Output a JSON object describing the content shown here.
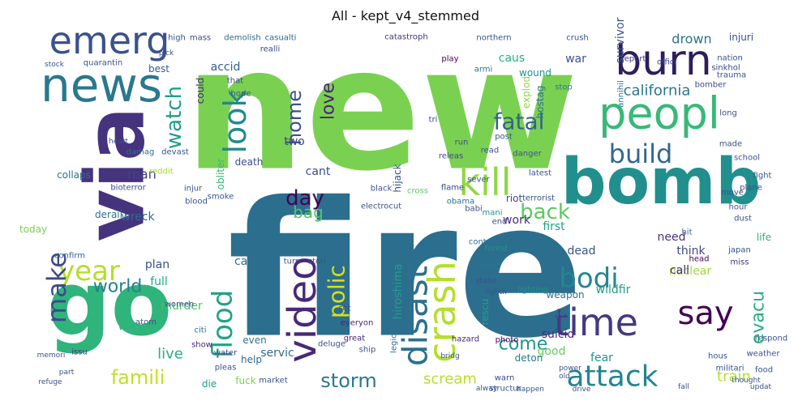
{
  "title": "All - kept_v4_stemmed",
  "chart_data": {
    "type": "wordcloud",
    "title": "All - kept_v4_stemmed",
    "words": [
      {
        "text": "new",
        "weight": 100,
        "color": "#7ad151"
      },
      {
        "text": "fire",
        "weight": 98,
        "color": "#2c6e8e"
      },
      {
        "text": "via",
        "weight": 48,
        "color": "#46337e"
      },
      {
        "text": "go",
        "weight": 46,
        "color": "#2fb47c"
      },
      {
        "text": "bomb",
        "weight": 40,
        "color": "#218f8d"
      },
      {
        "text": "news",
        "weight": 34,
        "color": "#2a788e"
      },
      {
        "text": "peopl",
        "weight": 32,
        "color": "#38b977"
      },
      {
        "text": "burn",
        "weight": 30,
        "color": "#2d1e5b"
      },
      {
        "text": "emerg",
        "weight": 30,
        "color": "#3b528b"
      },
      {
        "text": "time",
        "weight": 28,
        "color": "#443983"
      },
      {
        "text": "video",
        "weight": 28,
        "color": "#482878"
      },
      {
        "text": "crash",
        "weight": 28,
        "color": "#b5de2b"
      },
      {
        "text": "kill",
        "weight": 28,
        "color": "#8fd744"
      },
      {
        "text": "disast",
        "weight": 26,
        "color": "#2d708e"
      },
      {
        "text": "attack",
        "weight": 22,
        "color": "#25858e"
      },
      {
        "text": "say",
        "weight": 22,
        "color": "#440154"
      },
      {
        "text": "bodi",
        "weight": 20,
        "color": "#24868e"
      },
      {
        "text": "year",
        "weight": 20,
        "color": "#b5de2b"
      },
      {
        "text": "look",
        "weight": 20,
        "color": "#238a8d"
      },
      {
        "text": "make",
        "weight": 18,
        "color": "#3e4a89"
      },
      {
        "text": "flood",
        "weight": 18,
        "color": "#20a386"
      },
      {
        "text": "polic",
        "weight": 18,
        "color": "#d8e219"
      },
      {
        "text": "build",
        "weight": 18,
        "color": "#31688e"
      },
      {
        "text": "home",
        "weight": 16,
        "color": "#3b528b"
      },
      {
        "text": "fatal",
        "weight": 16,
        "color": "#33638d"
      },
      {
        "text": "watch",
        "weight": 16,
        "color": "#1f9f88"
      },
      {
        "text": "back",
        "weight": 16,
        "color": "#5ec962"
      },
      {
        "text": "day",
        "weight": 16,
        "color": "#440154"
      },
      {
        "text": "storm",
        "weight": 16,
        "color": "#2a788e"
      },
      {
        "text": "famili",
        "weight": 16,
        "color": "#c2df23"
      },
      {
        "text": "love",
        "weight": 15,
        "color": "#482475"
      },
      {
        "text": "evacu",
        "weight": 15,
        "color": "#29af7f"
      },
      {
        "text": "come",
        "weight": 14,
        "color": "#21918c"
      },
      {
        "text": "world",
        "weight": 14,
        "color": "#26828e"
      },
      {
        "text": "california",
        "weight": 13,
        "color": "#2a768e"
      },
      {
        "text": "train",
        "weight": 13,
        "color": "#b5de2b"
      },
      {
        "text": "drown",
        "weight": 12,
        "color": "#2c728e"
      },
      {
        "text": "bag",
        "weight": 12,
        "color": "#52c569"
      },
      {
        "text": "live",
        "weight": 12,
        "color": "#29af7f"
      },
      {
        "text": "scream",
        "weight": 12,
        "color": "#b8de29"
      },
      {
        "text": "hiroshima",
        "weight": 12,
        "color": "#1fa088"
      },
      {
        "text": "survivor",
        "weight": 11,
        "color": "#3b528b"
      },
      {
        "text": "man",
        "weight": 11,
        "color": "#404387"
      },
      {
        "text": "nuclear",
        "weight": 11,
        "color": "#a0da39"
      },
      {
        "text": "think",
        "weight": 11,
        "color": "#3f4889"
      },
      {
        "text": "good",
        "weight": 11,
        "color": "#65cb5e"
      },
      {
        "text": "suicid",
        "weight": 11,
        "color": "#482878"
      },
      {
        "text": "car",
        "weight": 11,
        "color": "#2e6f8e"
      },
      {
        "text": "wreck",
        "weight": 11,
        "color": "#306a8e"
      },
      {
        "text": "cant",
        "weight": 11,
        "color": "#3e4c8a"
      },
      {
        "text": "first",
        "weight": 11,
        "color": "#1fa188"
      },
      {
        "text": "need",
        "weight": 11,
        "color": "#46327e"
      },
      {
        "text": "two",
        "weight": 11,
        "color": "#414487"
      },
      {
        "text": "plan",
        "weight": 11,
        "color": "#3b528b"
      },
      {
        "text": "full",
        "weight": 11,
        "color": "#22a884"
      },
      {
        "text": "wave",
        "weight": 10,
        "color": "#30b57b"
      },
      {
        "text": "dead",
        "weight": 10,
        "color": "#3a548c"
      },
      {
        "text": "call",
        "weight": 10,
        "color": "#472d7b"
      },
      {
        "text": "work",
        "weight": 10,
        "color": "#472a7a"
      },
      {
        "text": "murder",
        "weight": 10,
        "color": "#4ac16d"
      },
      {
        "text": "servic",
        "weight": 10,
        "color": "#31688e"
      },
      {
        "text": "wildfir",
        "weight": 10,
        "color": "#1e9b8a"
      },
      {
        "text": "fear",
        "weight": 10,
        "color": "#1f948c"
      },
      {
        "text": "war",
        "weight": 10,
        "color": "#3b528b"
      },
      {
        "text": "caus",
        "weight": 10,
        "color": "#29af7f"
      },
      {
        "text": "accid",
        "weight": 10,
        "color": "#34618d"
      },
      {
        "text": "injuri",
        "weight": 9,
        "color": "#3b528b"
      },
      {
        "text": "collaps",
        "weight": 9,
        "color": "#2e6f8e"
      },
      {
        "text": "today",
        "weight": 9,
        "color": "#7ad151"
      },
      {
        "text": "derail",
        "weight": 9,
        "color": "#2c728e"
      },
      {
        "text": "hijack",
        "weight": 9,
        "color": "#3b528b"
      },
      {
        "text": "riot",
        "weight": 9,
        "color": "#3e4a89"
      },
      {
        "text": "even",
        "weight": 9,
        "color": "#2a768e"
      },
      {
        "text": "weapon",
        "weight": 9,
        "color": "#2d708e"
      },
      {
        "text": "destroy",
        "weight": 9,
        "color": "#2d708e"
      },
      {
        "text": "deton",
        "weight": 9,
        "color": "#2a788e"
      },
      {
        "text": "explod",
        "weight": 9,
        "color": "#8fd744"
      },
      {
        "text": "wound",
        "weight": 9,
        "color": "#21918c"
      },
      {
        "text": "hostag",
        "weight": 8,
        "color": "#2c728e"
      },
      {
        "text": "life",
        "weight": 8,
        "color": "#2fb47c"
      },
      {
        "text": "got",
        "weight": 8,
        "color": "#2a788e"
      },
      {
        "text": "help",
        "weight": 8,
        "color": "#31688e"
      },
      {
        "text": "fuck",
        "weight": 8,
        "color": "#7ad151"
      },
      {
        "text": "die",
        "weight": 8,
        "color": "#1f9e89"
      },
      {
        "text": "rescu",
        "weight": 8,
        "color": "#1fa188"
      },
      {
        "text": "obliter",
        "weight": 8,
        "color": "#35b779"
      },
      {
        "text": "death",
        "weight": 8,
        "color": "#3e4c8a"
      },
      {
        "text": "could",
        "weight": 8,
        "color": "#482878"
      },
      {
        "text": "best",
        "weight": 8,
        "color": "#375b8d"
      },
      {
        "text": "quarantin",
        "weight": 7,
        "color": "#3b528b"
      },
      {
        "text": "confirm",
        "weight": 7,
        "color": "#31688e"
      },
      {
        "text": "legionnair",
        "weight": 7,
        "color": "#2d708e"
      },
      {
        "text": "content",
        "weight": 7,
        "color": "#2c728e"
      },
      {
        "text": "start",
        "weight": 7,
        "color": "#2a768e"
      },
      {
        "text": "state",
        "weight": 7,
        "color": "#3b528b"
      },
      {
        "text": "photo",
        "weight": 7,
        "color": "#440154"
      },
      {
        "text": "hazard",
        "weight": 7,
        "color": "#482878"
      },
      {
        "text": "great",
        "weight": 7,
        "color": "#482475"
      },
      {
        "text": "water",
        "weight": 7,
        "color": "#3e4a89"
      },
      {
        "text": "citi",
        "weight": 7,
        "color": "#2d708e"
      },
      {
        "text": "mass",
        "weight": 7,
        "color": "#3e4a89"
      },
      {
        "text": "demolish",
        "weight": 6,
        "color": "#31688e"
      },
      {
        "text": "casualti",
        "weight": 6,
        "color": "#31688e"
      },
      {
        "text": "catastroph",
        "weight": 6,
        "color": "#46337e"
      },
      {
        "text": "northern",
        "weight": 6,
        "color": "#3b528b"
      },
      {
        "text": "crush",
        "weight": 6,
        "color": "#3b528b"
      },
      {
        "text": "report",
        "weight": 6,
        "color": "#443983"
      },
      {
        "text": "offici",
        "weight": 6,
        "color": "#3e4a89"
      },
      {
        "text": "annihil",
        "weight": 6,
        "color": "#2c728e"
      },
      {
        "text": "stop",
        "weight": 6,
        "color": "#2a788e"
      },
      {
        "text": "play",
        "weight": 6,
        "color": "#440154"
      },
      {
        "text": "realli",
        "weight": 6,
        "color": "#3e4a89"
      },
      {
        "text": "tri",
        "weight": 6,
        "color": "#3b528b"
      },
      {
        "text": "obama",
        "weight": 6,
        "color": "#2c728e"
      },
      {
        "text": "flame",
        "weight": 6,
        "color": "#3e4a89"
      },
      {
        "text": "cross",
        "weight": 6,
        "color": "#5ec962"
      },
      {
        "text": "black",
        "weight": 6,
        "color": "#3b528b"
      },
      {
        "text": "injur",
        "weight": 6,
        "color": "#3b528b"
      },
      {
        "text": "devast",
        "weight": 6,
        "color": "#3b528b"
      },
      {
        "text": "damag",
        "weight": 6,
        "color": "#2d708e"
      },
      {
        "text": "reddit",
        "weight": 6,
        "color": "#a0da39"
      },
      {
        "text": "show",
        "weight": 6,
        "color": "#482475"
      },
      {
        "text": "issu",
        "weight": 6,
        "color": "#46337e"
      },
      {
        "text": "atom",
        "weight": 6,
        "color": "#3b528b"
      },
      {
        "text": "everyon",
        "weight": 6,
        "color": "#482878"
      },
      {
        "text": "set",
        "weight": 6,
        "color": "#3b528b"
      },
      {
        "text": "releas",
        "weight": 6,
        "color": "#3e4a89"
      },
      {
        "text": "run",
        "weight": 6,
        "color": "#3e4a89"
      },
      {
        "text": "read",
        "weight": 6,
        "color": "#3b528b"
      },
      {
        "text": "forest",
        "weight": 6,
        "color": "#21918c"
      },
      {
        "text": "lighting",
        "weight": 5,
        "color": "#21918c"
      },
      {
        "text": "end",
        "weight": 5,
        "color": "#3b528b"
      },
      {
        "text": "japan",
        "weight": 5,
        "color": "#3b528b"
      },
      {
        "text": "miss",
        "weight": 5,
        "color": "#46337e"
      },
      {
        "text": "head",
        "weight": 5,
        "color": "#440154"
      },
      {
        "text": "hit",
        "weight": 5,
        "color": "#31688e"
      },
      {
        "text": "school",
        "weight": 5,
        "color": "#3b528b"
      },
      {
        "text": "bomber",
        "weight": 5,
        "color": "#3e4a89"
      },
      {
        "text": "nation",
        "weight": 5,
        "color": "#3b528b"
      },
      {
        "text": "sinkhol",
        "weight": 5,
        "color": "#3e4a89"
      },
      {
        "text": "trauma",
        "weight": 5,
        "color": "#3b528b"
      },
      {
        "text": "armi",
        "weight": 5,
        "color": "#2c728e"
      },
      {
        "text": "bioterror",
        "weight": 5,
        "color": "#3e4a89"
      },
      {
        "text": "mani",
        "weight": 5,
        "color": "#21918c"
      },
      {
        "text": "terrorist",
        "weight": 5,
        "color": "#3b528b"
      },
      {
        "text": "electrocut",
        "weight": 5,
        "color": "#3b528b"
      },
      {
        "text": "turn",
        "weight": 5,
        "color": "#3b528b"
      },
      {
        "text": "stori",
        "weight": 5,
        "color": "#3b528b"
      },
      {
        "text": "warn",
        "weight": 5,
        "color": "#3e4a89"
      },
      {
        "text": "structur",
        "weight": 5,
        "color": "#3b528b"
      },
      {
        "text": "hous",
        "weight": 5,
        "color": "#3b528b"
      },
      {
        "text": "militari",
        "weight": 5,
        "color": "#3b528b"
      },
      {
        "text": "respond",
        "weight": 5,
        "color": "#3b528b"
      },
      {
        "text": "weather",
        "weight": 5,
        "color": "#3b528b"
      },
      {
        "text": "food",
        "weight": 5,
        "color": "#3b528b"
      },
      {
        "text": "hope",
        "weight": 5,
        "color": "#3b528b"
      },
      {
        "text": "that",
        "weight": 5,
        "color": "#3e4a89"
      },
      {
        "text": "smoke",
        "weight": 5,
        "color": "#3b528b"
      },
      {
        "text": "blood",
        "weight": 5,
        "color": "#3b528b"
      },
      {
        "text": "women",
        "weight": 5,
        "color": "#3b528b"
      },
      {
        "text": "deluge",
        "weight": 5,
        "color": "#3b528b"
      },
      {
        "text": "ship",
        "weight": 5,
        "color": "#3b528b"
      },
      {
        "text": "market",
        "weight": 5,
        "color": "#3b528b"
      },
      {
        "text": "pleas",
        "weight": 5,
        "color": "#3b528b"
      },
      {
        "text": "danger",
        "weight": 5,
        "color": "#3b528b"
      },
      {
        "text": "latest",
        "weight": 5,
        "color": "#3b528b"
      },
      {
        "text": "move",
        "weight": 5,
        "color": "#3b528b"
      },
      {
        "text": "hour",
        "weight": 5,
        "color": "#3b528b"
      },
      {
        "text": "dust",
        "weight": 5,
        "color": "#3b528b"
      },
      {
        "text": "plane",
        "weight": 5,
        "color": "#3b528b"
      },
      {
        "text": "long",
        "weight": 5,
        "color": "#3b528b"
      },
      {
        "text": "made",
        "weight": 5,
        "color": "#3b528b"
      },
      {
        "text": "fight",
        "weight": 5,
        "color": "#3b528b"
      },
      {
        "text": "post",
        "weight": 5,
        "color": "#3b528b"
      },
      {
        "text": "babi",
        "weight": 5,
        "color": "#3b528b"
      },
      {
        "text": "sever",
        "weight": 5,
        "color": "#3b528b"
      },
      {
        "text": "high",
        "weight": 5,
        "color": "#3b528b"
      },
      {
        "text": "stock",
        "weight": 4,
        "color": "#3b528b"
      },
      {
        "text": "old",
        "weight": 4,
        "color": "#3b528b"
      },
      {
        "text": "part",
        "weight": 4,
        "color": "#3b528b"
      },
      {
        "text": "lightn",
        "weight": 4,
        "color": "#3b528b"
      },
      {
        "text": "drive",
        "weight": 4,
        "color": "#3b528b"
      },
      {
        "text": "fall",
        "weight": 4,
        "color": "#3b528b"
      },
      {
        "text": "refuge",
        "weight": 4,
        "color": "#3b528b"
      },
      {
        "text": "alway",
        "weight": 4,
        "color": "#3b528b"
      },
      {
        "text": "happen",
        "weight": 4,
        "color": "#3b528b"
      },
      {
        "text": "updat",
        "weight": 4,
        "color": "#3b528b"
      },
      {
        "text": "thought",
        "weight": 4,
        "color": "#3b528b"
      },
      {
        "text": "bridg",
        "weight": 4,
        "color": "#3b528b"
      },
      {
        "text": "power",
        "weight": 4,
        "color": "#3b528b"
      },
      {
        "text": "heart",
        "weight": 4,
        "color": "#3b528b"
      },
      {
        "text": "memori",
        "weight": 4,
        "color": "#3b528b"
      },
      {
        "text": "pick",
        "weight": 4,
        "color": "#3b528b"
      }
    ]
  }
}
